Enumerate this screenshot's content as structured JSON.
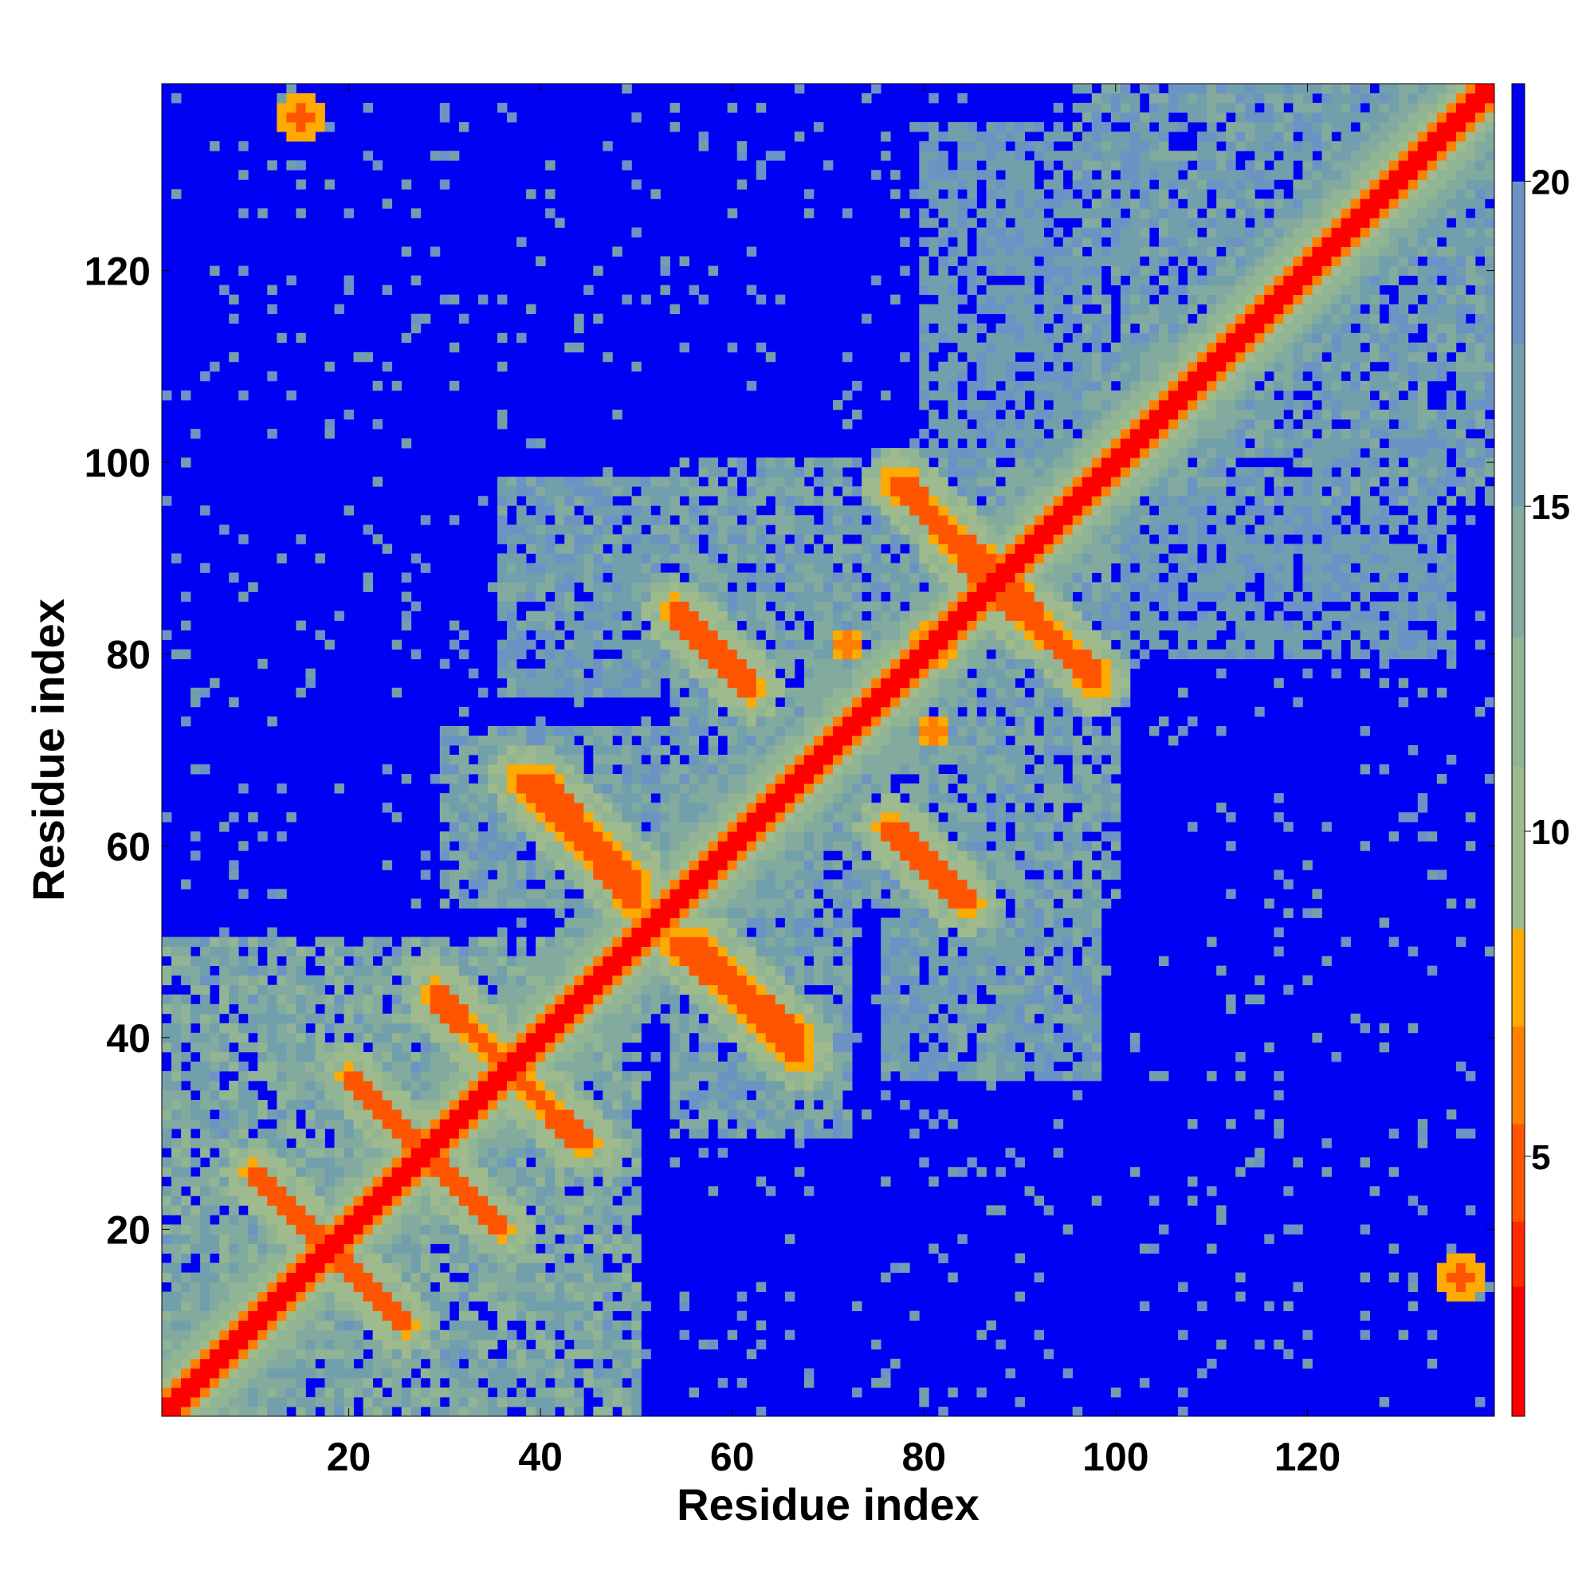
{
  "chart_data": {
    "type": "heatmap",
    "title": "",
    "xlabel": "Residue index",
    "ylabel": "Residue index",
    "n_residues": 139,
    "xlim": [
      1,
      139
    ],
    "ylim": [
      1,
      139
    ],
    "x_ticks": [
      20,
      40,
      60,
      80,
      100,
      120
    ],
    "y_ticks": [
      20,
      40,
      60,
      80,
      100,
      120
    ],
    "colorbar": {
      "ticks": [
        5,
        10,
        15,
        20
      ],
      "range": [
        1,
        21.5
      ],
      "colors": [
        "#ff0000",
        "#ff2a00",
        "#ff5500",
        "#ff8000",
        "#ffaa00",
        "#9fba8c",
        "#90b494",
        "#82aa9e",
        "#729fac",
        "#6b93c4",
        "#0000f5"
      ],
      "bounds": [
        1,
        3,
        4,
        5.5,
        7,
        8.5,
        11,
        13,
        15,
        17.5,
        20,
        21.5
      ]
    },
    "diagonal": {
      "width": 2.2
    },
    "features": [
      {
        "kind": "antidiagonal",
        "from": [
          10,
          26
        ],
        "to": [
          25,
          11
        ],
        "width": 1.4,
        "value": 5
      },
      {
        "kind": "antidiagonal",
        "from": [
          20,
          36
        ],
        "to": [
          34,
          22
        ],
        "width": 1.4,
        "value": 5
      },
      {
        "kind": "antidiagonal",
        "from": [
          29,
          44
        ],
        "to": [
          45,
          29
        ],
        "width": 1.4,
        "value": 5
      },
      {
        "kind": "antidiagonal",
        "from": [
          40,
          67
        ],
        "to": [
          50,
          56
        ],
        "width": 1.6,
        "value": 5
      },
      {
        "kind": "antidiagonal",
        "from": [
          54,
          50
        ],
        "to": [
          67,
          38
        ],
        "width": 1.6,
        "value": 5
      },
      {
        "kind": "antidiagonal",
        "from": [
          54,
          84
        ],
        "to": [
          62,
          76
        ],
        "width": 1.4,
        "value": 5
      },
      {
        "kind": "antidiagonal",
        "from": [
          77,
          62
        ],
        "to": [
          85,
          54
        ],
        "width": 1.4,
        "value": 5
      },
      {
        "kind": "antidiagonal",
        "from": [
          78,
          98
        ],
        "to": [
          86,
          88
        ],
        "width": 1.6,
        "value": 5
      },
      {
        "kind": "antidiagonal",
        "from": [
          89,
          87
        ],
        "to": [
          98,
          77
        ],
        "width": 1.6,
        "value": 5
      },
      {
        "kind": "blob",
        "center": [
          15,
          136
        ],
        "radius": 2.0,
        "value": 5
      },
      {
        "kind": "blob",
        "center": [
          136,
          15
        ],
        "radius": 2.0,
        "value": 5
      },
      {
        "kind": "blob",
        "center": [
          81,
          81
        ],
        "radius": 2.0,
        "value": 6
      },
      {
        "kind": "blob",
        "center": [
          81,
          72
        ],
        "radius": 1.5,
        "value": 6
      }
    ],
    "regions": [
      {
        "x": [
          1,
          50
        ],
        "y": [
          1,
          50
        ],
        "value": 12
      },
      {
        "x": [
          30,
          62
        ],
        "y": [
          54,
          72
        ],
        "value": 13
      },
      {
        "x": [
          54,
          72
        ],
        "y": [
          30,
          62
        ],
        "value": 13
      },
      {
        "x": [
          54,
          100
        ],
        "y": [
          54,
          100
        ],
        "value": 13
      },
      {
        "x": [
          96,
          139
        ],
        "y": [
          96,
          139
        ],
        "value": 14
      },
      {
        "x": [
          36,
          58
        ],
        "y": [
          76,
          98
        ],
        "value": 14
      },
      {
        "x": [
          76,
          98
        ],
        "y": [
          36,
          58
        ],
        "value": 14
      },
      {
        "x": [
          80,
          128
        ],
        "y": [
          96,
          135
        ],
        "value": 15
      },
      {
        "x": [
          96,
          135
        ],
        "y": [
          80,
          128
        ],
        "value": 15
      }
    ]
  }
}
